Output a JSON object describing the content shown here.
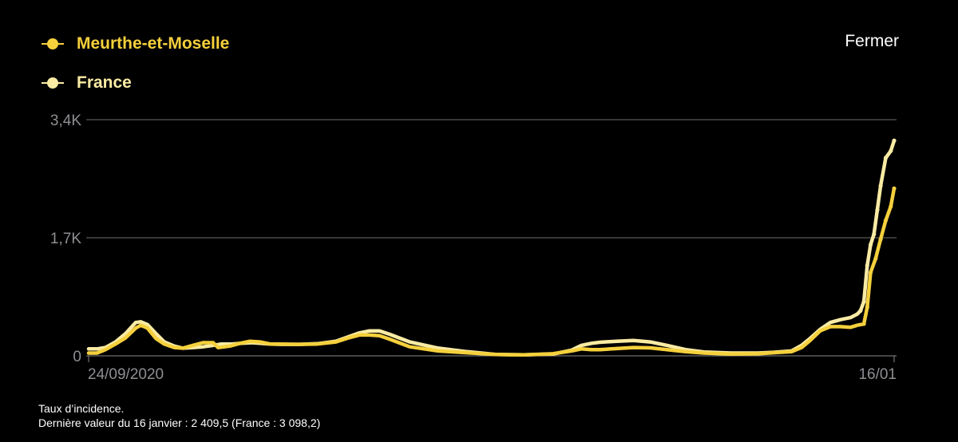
{
  "header": {
    "close_label": "Fermer"
  },
  "legend": [
    {
      "label": "Meurthe-et-Moselle",
      "color": "#F5D03C"
    },
    {
      "label": "France",
      "color": "#FAEBA4"
    }
  ],
  "caption": {
    "line1": "Taux d’incidence.",
    "line2": "Dernière valeur du 16 janvier : 2 409,5 (France : 3 098,2)"
  },
  "chart_data": {
    "type": "line",
    "x_start_label": "24/09/2020",
    "x_end_label": "16/01",
    "y_ticks": [
      {
        "value": 0,
        "label": "0"
      },
      {
        "value": 1700,
        "label": "1,7K"
      },
      {
        "value": 3400,
        "label": "3,4K"
      }
    ],
    "ylim": [
      0,
      3400
    ],
    "grid": true,
    "series": [
      {
        "name": "Meurthe-et-Moselle",
        "color": "#F5D03C",
        "points": [
          [
            "2020-09-24",
            40
          ],
          [
            "2020-09-29",
            40
          ],
          [
            "2020-10-04",
            90
          ],
          [
            "2020-10-10",
            170
          ],
          [
            "2020-10-16",
            260
          ],
          [
            "2020-10-22",
            400
          ],
          [
            "2020-10-25",
            440
          ],
          [
            "2020-10-29",
            400
          ],
          [
            "2020-11-03",
            250
          ],
          [
            "2020-11-08",
            170
          ],
          [
            "2020-11-14",
            120
          ],
          [
            "2020-11-19",
            110
          ],
          [
            "2020-11-25",
            150
          ],
          [
            "2020-12-01",
            190
          ],
          [
            "2020-12-07",
            190
          ],
          [
            "2020-12-10",
            120
          ],
          [
            "2020-12-17",
            140
          ],
          [
            "2020-12-23",
            180
          ],
          [
            "2020-12-29",
            210
          ],
          [
            "2021-01-04",
            200
          ],
          [
            "2021-01-10",
            170
          ],
          [
            "2021-01-16",
            170
          ],
          [
            "2021-01-27",
            165
          ],
          [
            "2021-02-07",
            170
          ],
          [
            "2021-02-18",
            200
          ],
          [
            "2021-02-25",
            255
          ],
          [
            "2021-03-04",
            300
          ],
          [
            "2021-03-10",
            300
          ],
          [
            "2021-03-16",
            290
          ],
          [
            "2021-03-22",
            240
          ],
          [
            "2021-04-03",
            130
          ],
          [
            "2021-04-20",
            70
          ],
          [
            "2021-05-07",
            45
          ],
          [
            "2021-05-24",
            20
          ],
          [
            "2021-06-10",
            15
          ],
          [
            "2021-06-27",
            30
          ],
          [
            "2021-07-08",
            70
          ],
          [
            "2021-07-14",
            100
          ],
          [
            "2021-07-20",
            90
          ],
          [
            "2021-07-25",
            90
          ],
          [
            "2021-08-04",
            105
          ],
          [
            "2021-08-14",
            120
          ],
          [
            "2021-08-24",
            115
          ],
          [
            "2021-09-03",
            90
          ],
          [
            "2021-09-14",
            60
          ],
          [
            "2021-09-25",
            40
          ],
          [
            "2021-10-11",
            25
          ],
          [
            "2021-10-27",
            30
          ],
          [
            "2021-11-05",
            45
          ],
          [
            "2021-11-16",
            60
          ],
          [
            "2021-11-22",
            120
          ],
          [
            "2021-11-27",
            220
          ],
          [
            "2021-12-03",
            360
          ],
          [
            "2021-12-09",
            420
          ],
          [
            "2021-12-15",
            420
          ],
          [
            "2021-12-21",
            410
          ],
          [
            "2021-12-25",
            440
          ],
          [
            "2021-12-29",
            460
          ],
          [
            "2021-12-31",
            700
          ],
          [
            "2022-01-02",
            1200
          ],
          [
            "2022-01-05",
            1400
          ],
          [
            "2022-01-08",
            1680
          ],
          [
            "2022-01-11",
            1950
          ],
          [
            "2022-01-14",
            2150
          ],
          [
            "2022-01-16",
            2409.5
          ]
        ]
      },
      {
        "name": "France",
        "color": "#FAEBA4",
        "points": [
          [
            "2020-09-24",
            100
          ],
          [
            "2020-09-29",
            100
          ],
          [
            "2020-10-04",
            120
          ],
          [
            "2020-10-10",
            200
          ],
          [
            "2020-10-16",
            320
          ],
          [
            "2020-10-22",
            480
          ],
          [
            "2020-10-25",
            490
          ],
          [
            "2020-10-29",
            450
          ],
          [
            "2020-11-03",
            320
          ],
          [
            "2020-11-08",
            200
          ],
          [
            "2020-11-14",
            140
          ],
          [
            "2020-11-19",
            110
          ],
          [
            "2020-11-25",
            120
          ],
          [
            "2020-12-01",
            130
          ],
          [
            "2020-12-07",
            150
          ],
          [
            "2020-12-12",
            170
          ],
          [
            "2020-12-18",
            170
          ],
          [
            "2020-12-24",
            180
          ],
          [
            "2020-12-30",
            190
          ],
          [
            "2021-01-04",
            180
          ],
          [
            "2021-01-10",
            170
          ],
          [
            "2021-01-16",
            165
          ],
          [
            "2021-01-27",
            165
          ],
          [
            "2021-02-07",
            175
          ],
          [
            "2021-02-18",
            210
          ],
          [
            "2021-02-25",
            270
          ],
          [
            "2021-03-04",
            330
          ],
          [
            "2021-03-10",
            360
          ],
          [
            "2021-03-16",
            360
          ],
          [
            "2021-03-22",
            310
          ],
          [
            "2021-04-03",
            200
          ],
          [
            "2021-04-20",
            110
          ],
          [
            "2021-05-07",
            60
          ],
          [
            "2021-05-24",
            20
          ],
          [
            "2021-06-10",
            15
          ],
          [
            "2021-06-27",
            25
          ],
          [
            "2021-07-08",
            80
          ],
          [
            "2021-07-14",
            150
          ],
          [
            "2021-07-20",
            180
          ],
          [
            "2021-07-25",
            195
          ],
          [
            "2021-08-04",
            210
          ],
          [
            "2021-08-14",
            220
          ],
          [
            "2021-08-24",
            200
          ],
          [
            "2021-09-03",
            150
          ],
          [
            "2021-09-14",
            90
          ],
          [
            "2021-09-25",
            55
          ],
          [
            "2021-10-11",
            40
          ],
          [
            "2021-10-27",
            40
          ],
          [
            "2021-11-05",
            50
          ],
          [
            "2021-11-16",
            70
          ],
          [
            "2021-11-22",
            150
          ],
          [
            "2021-11-27",
            250
          ],
          [
            "2021-12-03",
            380
          ],
          [
            "2021-12-09",
            480
          ],
          [
            "2021-12-15",
            520
          ],
          [
            "2021-12-21",
            550
          ],
          [
            "2021-12-25",
            600
          ],
          [
            "2021-12-27",
            650
          ],
          [
            "2021-12-29",
            780
          ],
          [
            "2021-12-31",
            1300
          ],
          [
            "2022-01-02",
            1600
          ],
          [
            "2022-01-04",
            1750
          ],
          [
            "2022-01-06",
            2100
          ],
          [
            "2022-01-08",
            2450
          ],
          [
            "2022-01-11",
            2850
          ],
          [
            "2022-01-14",
            2950
          ],
          [
            "2022-01-16",
            3098.2
          ]
        ]
      }
    ]
  }
}
